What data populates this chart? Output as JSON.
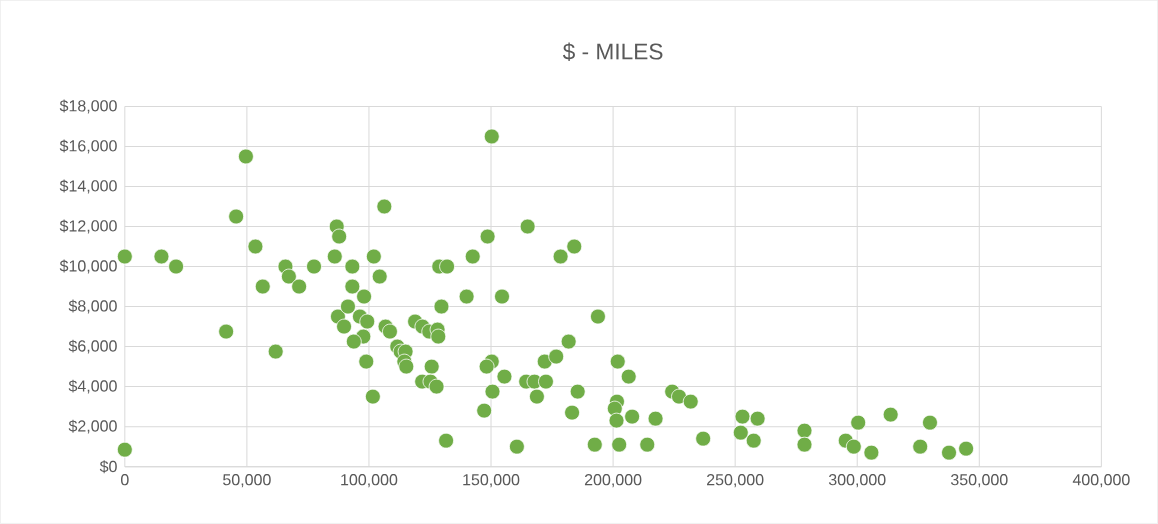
{
  "chart_data": {
    "type": "scatter",
    "title": "$  - MILES",
    "x": [
      0,
      0,
      15000,
      21000,
      41500,
      45600,
      49600,
      53500,
      56500,
      61800,
      65800,
      67200,
      71400,
      77500,
      86800,
      87800,
      86000,
      87300,
      89800,
      106300,
      150300,
      165000,
      148600,
      102000,
      142500,
      93200,
      128800,
      132000,
      104400,
      93200,
      98000,
      140000,
      154500,
      91400,
      129700,
      96300,
      99300,
      106800,
      108600,
      118900,
      121900,
      124700,
      128100,
      128400,
      97700,
      93800,
      111600,
      113000,
      115000,
      114500,
      115300,
      125700,
      98900,
      121800,
      125200,
      127700,
      101600,
      131600,
      150300,
      148200,
      155500,
      150600,
      147200,
      160600,
      164400,
      167800,
      168800,
      172000,
      178500,
      184100,
      193800,
      181800,
      176700,
      172500,
      185500,
      183200,
      201900,
      206400,
      201600,
      200700,
      201400,
      207800,
      217400,
      192500,
      202500,
      214000,
      224200,
      227000,
      231800,
      236900,
      253000,
      252300,
      259200,
      257600,
      278400,
      278400,
      300400,
      295300,
      298600,
      305800,
      313700,
      329800,
      325800,
      337600,
      344600
    ],
    "values": [
      10500,
      850,
      10500,
      10000,
      6750,
      12500,
      15500,
      11000,
      9000,
      5750,
      10000,
      9500,
      9000,
      10000,
      12000,
      11500,
      10500,
      7500,
      7000,
      13000,
      16500,
      12000,
      11500,
      10500,
      10500,
      10000,
      10000,
      10000,
      9500,
      9000,
      8500,
      8500,
      8500,
      8000,
      8000,
      7500,
      7250,
      7000,
      6750,
      7250,
      7000,
      6750,
      6850,
      6500,
      6500,
      6250,
      6000,
      5750,
      5750,
      5250,
      5000,
      5000,
      5250,
      4250,
      4250,
      4000,
      3500,
      1300,
      5250,
      5000,
      4500,
      3750,
      2800,
      1000,
      4250,
      4250,
      3500,
      5250,
      10500,
      11000,
      7500,
      6250,
      5500,
      4250,
      3750,
      2700,
      5250,
      4500,
      3250,
      2900,
      2300,
      2500,
      2400,
      1100,
      1100,
      1100,
      3750,
      3500,
      3250,
      1400,
      2500,
      1700,
      2400,
      1300,
      1800,
      1100,
      2200,
      1300,
      1000,
      700,
      2600,
      2200,
      1000,
      700,
      900
    ],
    "color": "#70ad47",
    "marker": "circle",
    "grid": true,
    "xlim": [
      0,
      400000
    ],
    "ylim": [
      0,
      18000
    ],
    "xticks": [
      0,
      {
        "value": 50000,
        "label": "50,000"
      },
      {
        "value": 100000,
        "label": "100,000"
      },
      {
        "value": 150000,
        "label": "150,000"
      },
      {
        "value": 200000,
        "label": "200,000"
      },
      {
        "value": 250000,
        "label": "250,000"
      },
      {
        "value": 300000,
        "label": "300,000"
      },
      {
        "value": 350000,
        "label": "350,000"
      },
      {
        "value": 400000,
        "label": "400,000"
      }
    ],
    "yticks": [
      {
        "value": 0,
        "label": "$0"
      },
      {
        "value": 2000,
        "label": "$2,000"
      },
      {
        "value": 4000,
        "label": "$4,000"
      },
      {
        "value": 6000,
        "label": "$6,000"
      },
      {
        "value": 8000,
        "label": "$8,000"
      },
      {
        "value": 10000,
        "label": "$10,000"
      },
      {
        "value": 12000,
        "label": "$12,000"
      },
      {
        "value": 14000,
        "label": "$14,000"
      },
      {
        "value": 16000,
        "label": "$16,000"
      },
      {
        "value": 18000,
        "label": "$18,000"
      }
    ]
  }
}
